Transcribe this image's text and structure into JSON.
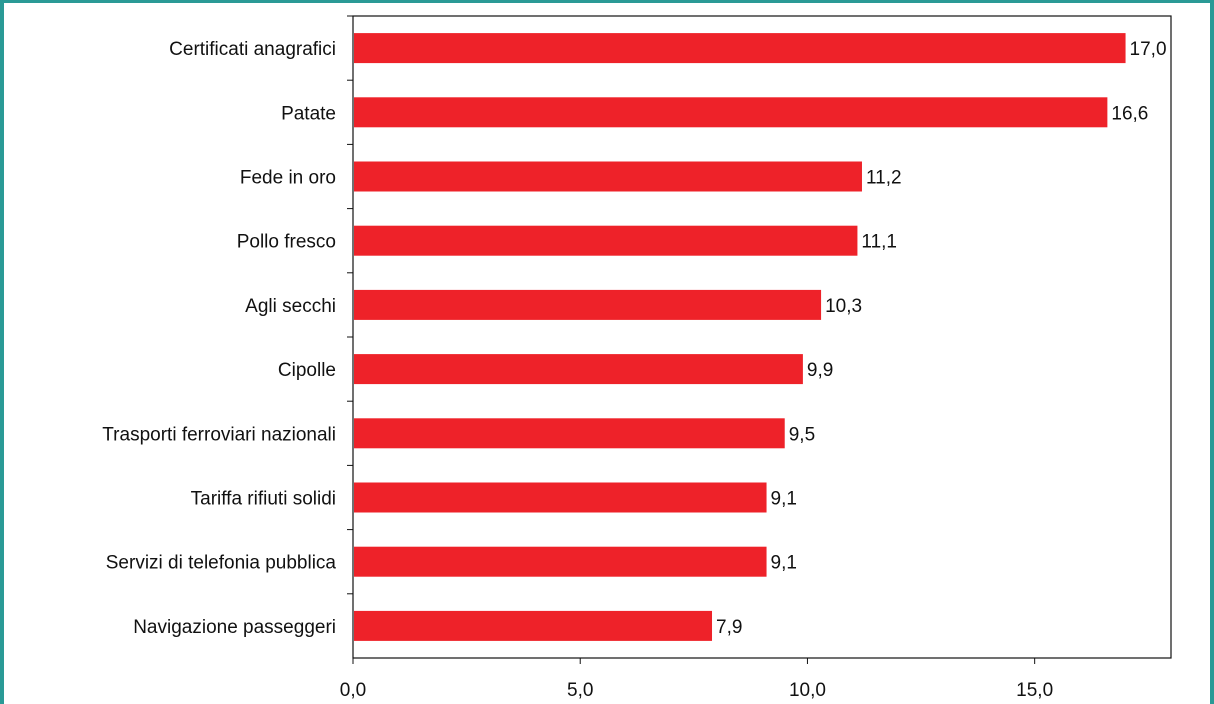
{
  "chart_data": {
    "type": "bar",
    "orientation": "horizontal",
    "title": "",
    "categories": [
      "Certificati anagrafici",
      "Patate",
      "Fede in oro",
      "Pollo fresco",
      "Agli secchi",
      "Cipolle",
      "Trasporti ferroviari nazionali",
      "Tariffa rifiuti solidi",
      "Servizi di telefonia pubblica",
      "Navigazione passeggeri"
    ],
    "values": [
      17.0,
      16.6,
      11.2,
      11.1,
      10.3,
      9.9,
      9.5,
      9.1,
      9.1,
      7.9
    ],
    "value_labels": [
      "17,0",
      "16,6",
      "11,2",
      "11,1",
      "10,3",
      "9,9",
      "9,5",
      "9,1",
      "9,1",
      "7,9"
    ],
    "x_ticks": [
      0,
      5,
      10,
      15
    ],
    "x_tick_labels": [
      "0,0",
      "5,0",
      "10,0",
      "15,0"
    ],
    "xlim": [
      0,
      18
    ],
    "xlabel": "",
    "ylabel": "",
    "grid": false,
    "bar_color": "#ee2229",
    "frame_color": "#2a9a96"
  }
}
